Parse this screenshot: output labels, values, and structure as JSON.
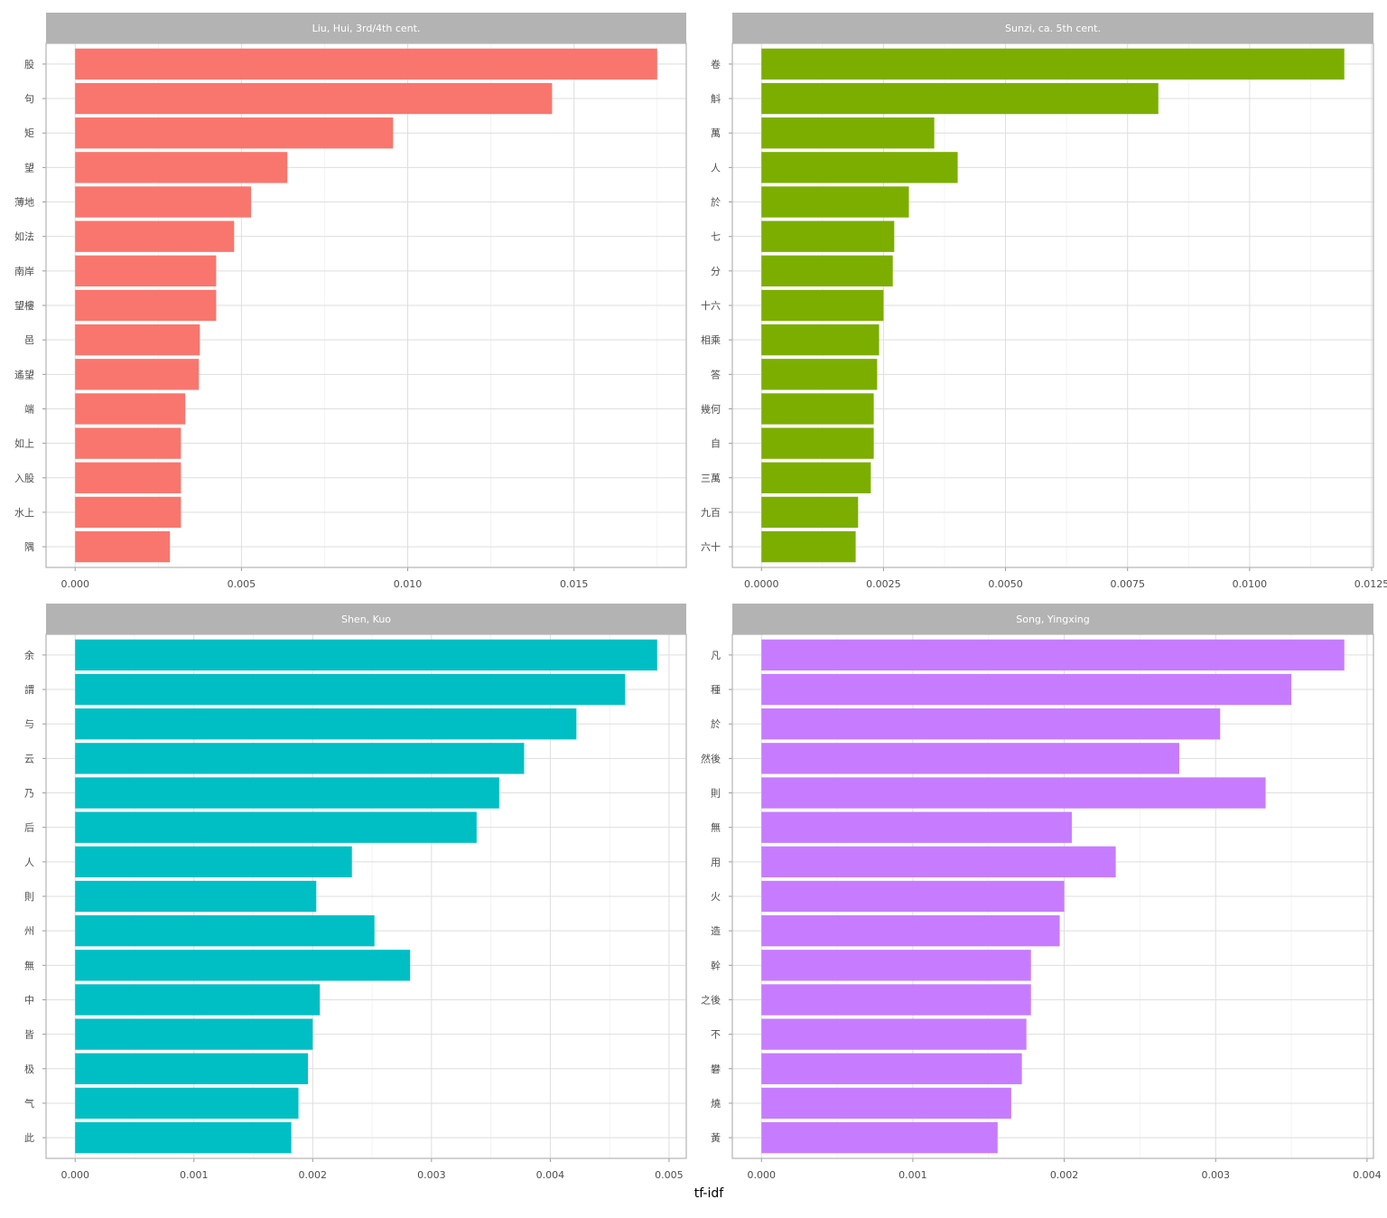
{
  "chart_data": [
    {
      "type": "bar",
      "orientation": "horizontal",
      "title": "Liu, Hui, 3rd/4th cent.",
      "color": "#F8766D",
      "categories": [
        "股",
        "句",
        "矩",
        "望",
        "薄地",
        "如法",
        "南岸",
        "望樓",
        "邑",
        "遙望",
        "端",
        "如上",
        "入股",
        "水上",
        "隅"
      ],
      "values": [
        0.0175,
        0.01434,
        0.00956,
        0.00638,
        0.00529,
        0.00478,
        0.00424,
        0.00424,
        0.00375,
        0.00372,
        0.00331,
        0.00318,
        0.00318,
        0.00318,
        0.00285
      ],
      "xticks": [
        "0.000",
        "0.005",
        "0.010",
        "0.015"
      ],
      "xtick_values": [
        0,
        0.005,
        0.01,
        0.015
      ]
    },
    {
      "type": "bar",
      "orientation": "horizontal",
      "title": "Sunzi, ca. 5th cent.",
      "color": "#7CAE00",
      "categories": [
        "卷",
        "斛",
        "萬",
        "人",
        "於",
        "七",
        "分",
        "十六",
        "相乘",
        "答",
        "幾何",
        "自",
        "三萬",
        "九百",
        "六十"
      ],
      "values": [
        0.01194,
        0.00813,
        0.00354,
        0.00402,
        0.00302,
        0.00272,
        0.00269,
        0.0025,
        0.00241,
        0.00237,
        0.0023,
        0.0023,
        0.00224,
        0.00198,
        0.00193
      ],
      "xticks": [
        "0.0000",
        "0.0025",
        "0.0050",
        "0.0075",
        "0.0100",
        "0.0125"
      ],
      "xtick_values": [
        0,
        0.0025,
        0.005,
        0.0075,
        0.01,
        0.0125
      ]
    },
    {
      "type": "bar",
      "orientation": "horizontal",
      "title": "Shen, Kuo",
      "color": "#00BFC4",
      "categories": [
        "余",
        "謂",
        "与",
        "云",
        "乃",
        "后",
        "人",
        "則",
        "州",
        "無",
        "中",
        "皆",
        "极",
        "气",
        "此"
      ],
      "values": [
        0.0049,
        0.00463,
        0.00422,
        0.00378,
        0.00357,
        0.00338,
        0.00233,
        0.00203,
        0.00252,
        0.00282,
        0.00206,
        0.002,
        0.00196,
        0.00188,
        0.00182
      ],
      "xticks": [
        "0.000",
        "0.001",
        "0.002",
        "0.003",
        "0.004",
        "0.005"
      ],
      "xtick_values": [
        0,
        0.001,
        0.002,
        0.003,
        0.004,
        0.005
      ]
    },
    {
      "type": "bar",
      "orientation": "horizontal",
      "title": "Song, Yingxing",
      "color": "#C77CFF",
      "categories": [
        "凡",
        "種",
        "於",
        "然後",
        "則",
        "無",
        "用",
        "火",
        "造",
        "幹",
        "之後",
        "不",
        "礬",
        "燒",
        "黃"
      ],
      "values": [
        0.00385,
        0.0035,
        0.00303,
        0.00276,
        0.00333,
        0.00205,
        0.00234,
        0.002,
        0.00197,
        0.00178,
        0.00178,
        0.00175,
        0.00172,
        0.00165,
        0.00156
      ],
      "xticks": [
        "0.000",
        "0.001",
        "0.002",
        "0.003",
        "0.004"
      ],
      "xtick_values": [
        0,
        0.001,
        0.002,
        0.003,
        0.004
      ]
    }
  ],
  "xlabel": "tf-idf",
  "grid": true
}
